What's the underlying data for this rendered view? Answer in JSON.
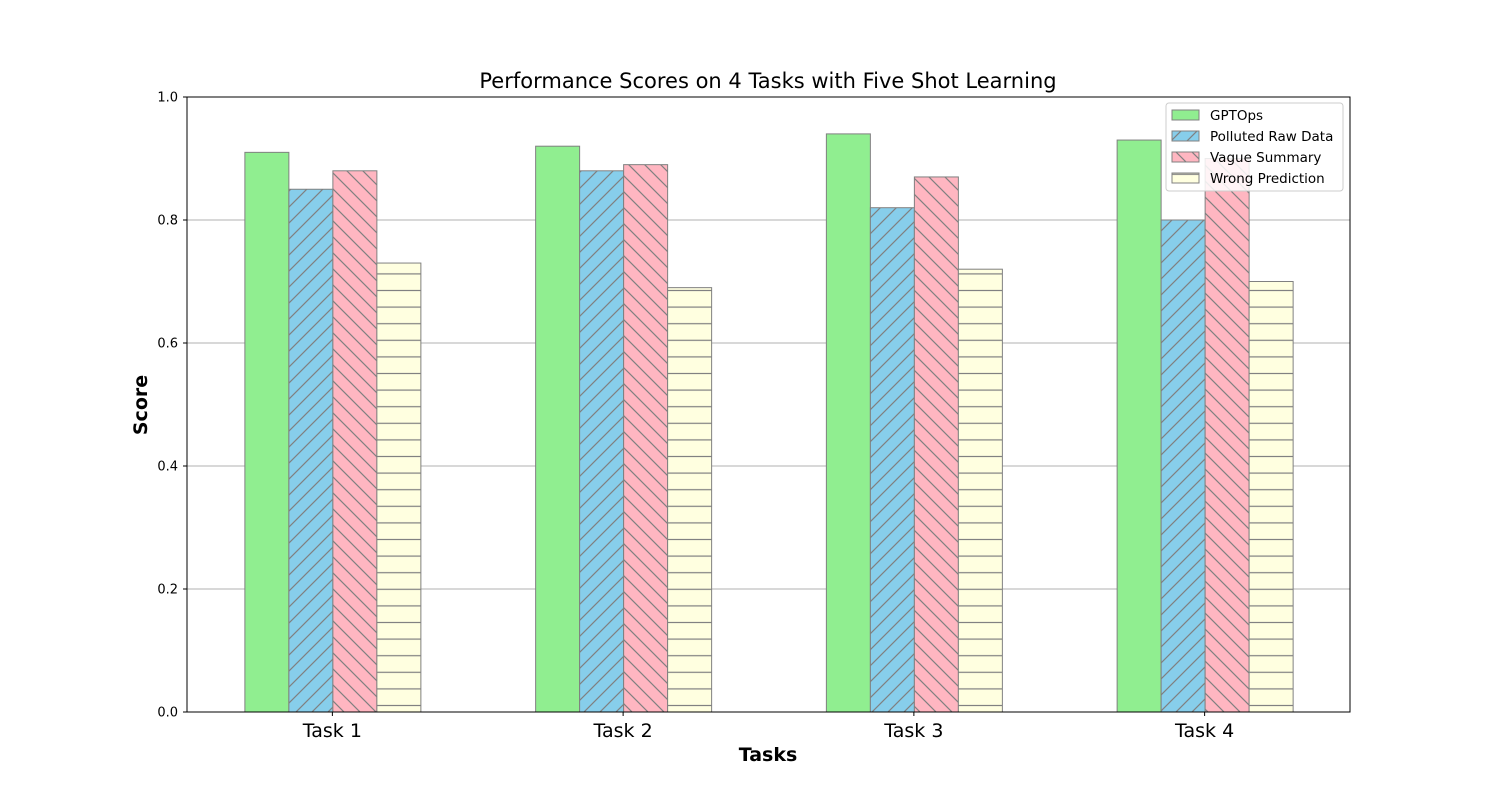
{
  "chart_data": {
    "type": "bar",
    "title": "Performance Scores on 4 Tasks with Five Shot Learning",
    "xlabel": "Tasks",
    "ylabel": "Score",
    "ylim": [
      0,
      1.0
    ],
    "yticks": [
      "0.0",
      "0.2",
      "0.4",
      "0.6",
      "0.8",
      "1.0"
    ],
    "grid": "horizontal",
    "legend_position": "top-right",
    "categories": [
      "Task 1",
      "Task 2",
      "Task 3",
      "Task 4"
    ],
    "series": [
      {
        "name": "GPTOps",
        "values": [
          0.91,
          0.92,
          0.94,
          0.93
        ],
        "color": "#90ee90",
        "hatch": "none"
      },
      {
        "name": "Polluted Raw Data",
        "values": [
          0.85,
          0.88,
          0.82,
          0.8
        ],
        "color": "#87ceeb",
        "hatch": "forward-diagonal"
      },
      {
        "name": "Vague Summary",
        "values": [
          0.88,
          0.89,
          0.87,
          0.9
        ],
        "color": "#ffb6c1",
        "hatch": "back-diagonal"
      },
      {
        "name": "Wrong Prediction",
        "values": [
          0.73,
          0.69,
          0.72,
          0.7
        ],
        "color": "#ffffe0",
        "hatch": "horizontal"
      }
    ],
    "edge_color": "#808080",
    "grid_color": "#b0b0b0"
  }
}
